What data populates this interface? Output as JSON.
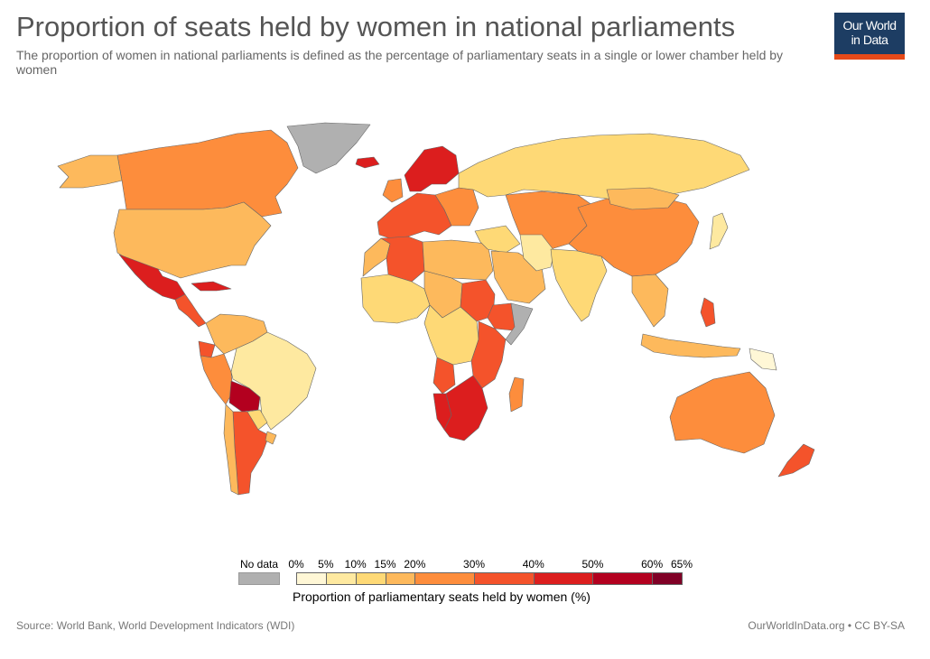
{
  "header": {
    "title": "Proportion of seats held by women in national parliaments",
    "subtitle": "The proportion of women in national parliaments is defined as the percentage of parliamentary seats in a single or lower chamber held by women"
  },
  "logo": {
    "line1": "Our World",
    "line2": "in Data",
    "bg_color": "#1d3d63",
    "accent_color": "#e64a19"
  },
  "legend": {
    "no_data_label": "No data",
    "no_data_color": "#b0b0b0",
    "title": "Proportion of parliamentary seats held by women (%)",
    "ticks": [
      "0%",
      "5%",
      "10%",
      "15%",
      "20%",
      "30%",
      "40%",
      "50%",
      "60%",
      "65%"
    ],
    "bins": [
      {
        "from": 0,
        "to": 5,
        "color": "#fff7d6"
      },
      {
        "from": 5,
        "to": 10,
        "color": "#fee9a0"
      },
      {
        "from": 10,
        "to": 15,
        "color": "#fed976"
      },
      {
        "from": 15,
        "to": 20,
        "color": "#fdb95c"
      },
      {
        "from": 20,
        "to": 30,
        "color": "#fd8d3c"
      },
      {
        "from": 30,
        "to": 40,
        "color": "#f4532b"
      },
      {
        "from": 40,
        "to": 50,
        "color": "#dc1e1e"
      },
      {
        "from": 50,
        "to": 60,
        "color": "#b3001f"
      },
      {
        "from": 60,
        "to": 65,
        "color": "#800026"
      }
    ]
  },
  "footer": {
    "source": "Source: World Bank, World Development Indicators (WDI)",
    "credit": "OurWorldInData.org • CC BY-SA"
  },
  "map": {
    "ocean_color": "#ffffff",
    "border_color": "#666666",
    "regions": [
      {
        "name": "greenland",
        "bin": "nodata"
      },
      {
        "name": "canada",
        "bin": 4
      },
      {
        "name": "alaska",
        "bin": 3
      },
      {
        "name": "usa",
        "bin": 3
      },
      {
        "name": "mexico",
        "bin": 6
      },
      {
        "name": "central-america",
        "bin": 5
      },
      {
        "name": "cuba",
        "bin": 6
      },
      {
        "name": "colombia-venezuela",
        "bin": 3
      },
      {
        "name": "ecuador",
        "bin": 5
      },
      {
        "name": "peru",
        "bin": 4
      },
      {
        "name": "brazil",
        "bin": 1
      },
      {
        "name": "bolivia",
        "bin": 7
      },
      {
        "name": "paraguay",
        "bin": 2
      },
      {
        "name": "argentina",
        "bin": 5
      },
      {
        "name": "chile",
        "bin": 3
      },
      {
        "name": "uruguay",
        "bin": 3
      },
      {
        "name": "iceland",
        "bin": 6
      },
      {
        "name": "scandinavia",
        "bin": 6
      },
      {
        "name": "uk-ireland",
        "bin": 4
      },
      {
        "name": "western-europe",
        "bin": 5
      },
      {
        "name": "eastern-europe",
        "bin": 4
      },
      {
        "name": "russia",
        "bin": 2
      },
      {
        "name": "morocco",
        "bin": 3
      },
      {
        "name": "algeria",
        "bin": 5
      },
      {
        "name": "libya-egypt",
        "bin": 3
      },
      {
        "name": "west-africa",
        "bin": 2
      },
      {
        "name": "sahel",
        "bin": 3
      },
      {
        "name": "sudan",
        "bin": 5
      },
      {
        "name": "ethiopia",
        "bin": 5
      },
      {
        "name": "somalia",
        "bin": "nodata"
      },
      {
        "name": "central-africa",
        "bin": 2
      },
      {
        "name": "east-africa",
        "bin": 5
      },
      {
        "name": "angola",
        "bin": 5
      },
      {
        "name": "namibia",
        "bin": 6
      },
      {
        "name": "southern-africa",
        "bin": 6
      },
      {
        "name": "madagascar",
        "bin": 4
      },
      {
        "name": "middle-east",
        "bin": 2
      },
      {
        "name": "arabia",
        "bin": 3
      },
      {
        "name": "central-asia",
        "bin": 4
      },
      {
        "name": "iran",
        "bin": 1
      },
      {
        "name": "india",
        "bin": 2
      },
      {
        "name": "china",
        "bin": 4
      },
      {
        "name": "mongolia",
        "bin": 3
      },
      {
        "name": "japan",
        "bin": 1
      },
      {
        "name": "southeast-asia",
        "bin": 3
      },
      {
        "name": "indonesia",
        "bin": 3
      },
      {
        "name": "philippines",
        "bin": 5
      },
      {
        "name": "papua-new-guinea",
        "bin": 0
      },
      {
        "name": "australia",
        "bin": 4
      },
      {
        "name": "new-zealand",
        "bin": 5
      }
    ]
  }
}
